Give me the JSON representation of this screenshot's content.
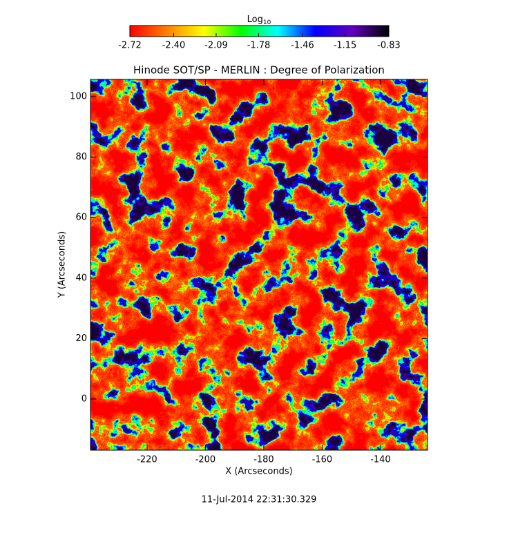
{
  "chart_data": {
    "type": "image",
    "title": "Hinode SOT/SP - MERLIN : Degree of Polarization",
    "x_label": "X (Arcseconds)",
    "y_label": "Y (Arcseconds)",
    "footer": "11-Jul-2014 22:31:30.329",
    "xlim": [
      -239.4,
      -123.9
    ],
    "ylim": [
      -16.9,
      105.7
    ],
    "xticks": [
      -220,
      -200,
      -180,
      -160,
      -140
    ],
    "yticks": [
      0,
      20,
      40,
      60,
      80,
      100
    ],
    "colorbar": {
      "label": "Log",
      "label_subscript": "10",
      "lim": [
        -2.72,
        -0.83
      ],
      "ticks": [
        -2.72,
        {
          "value": -2.4,
          "label": "-2.40"
        },
        -2.09,
        -1.78,
        -1.46,
        -1.15,
        -0.83
      ],
      "colors": [
        "#ff0000",
        "#ff8000",
        "#ffff00",
        "#00ff00",
        "#00ffff",
        "#0000ff",
        "#6000c0",
        "#000000"
      ]
    }
  }
}
